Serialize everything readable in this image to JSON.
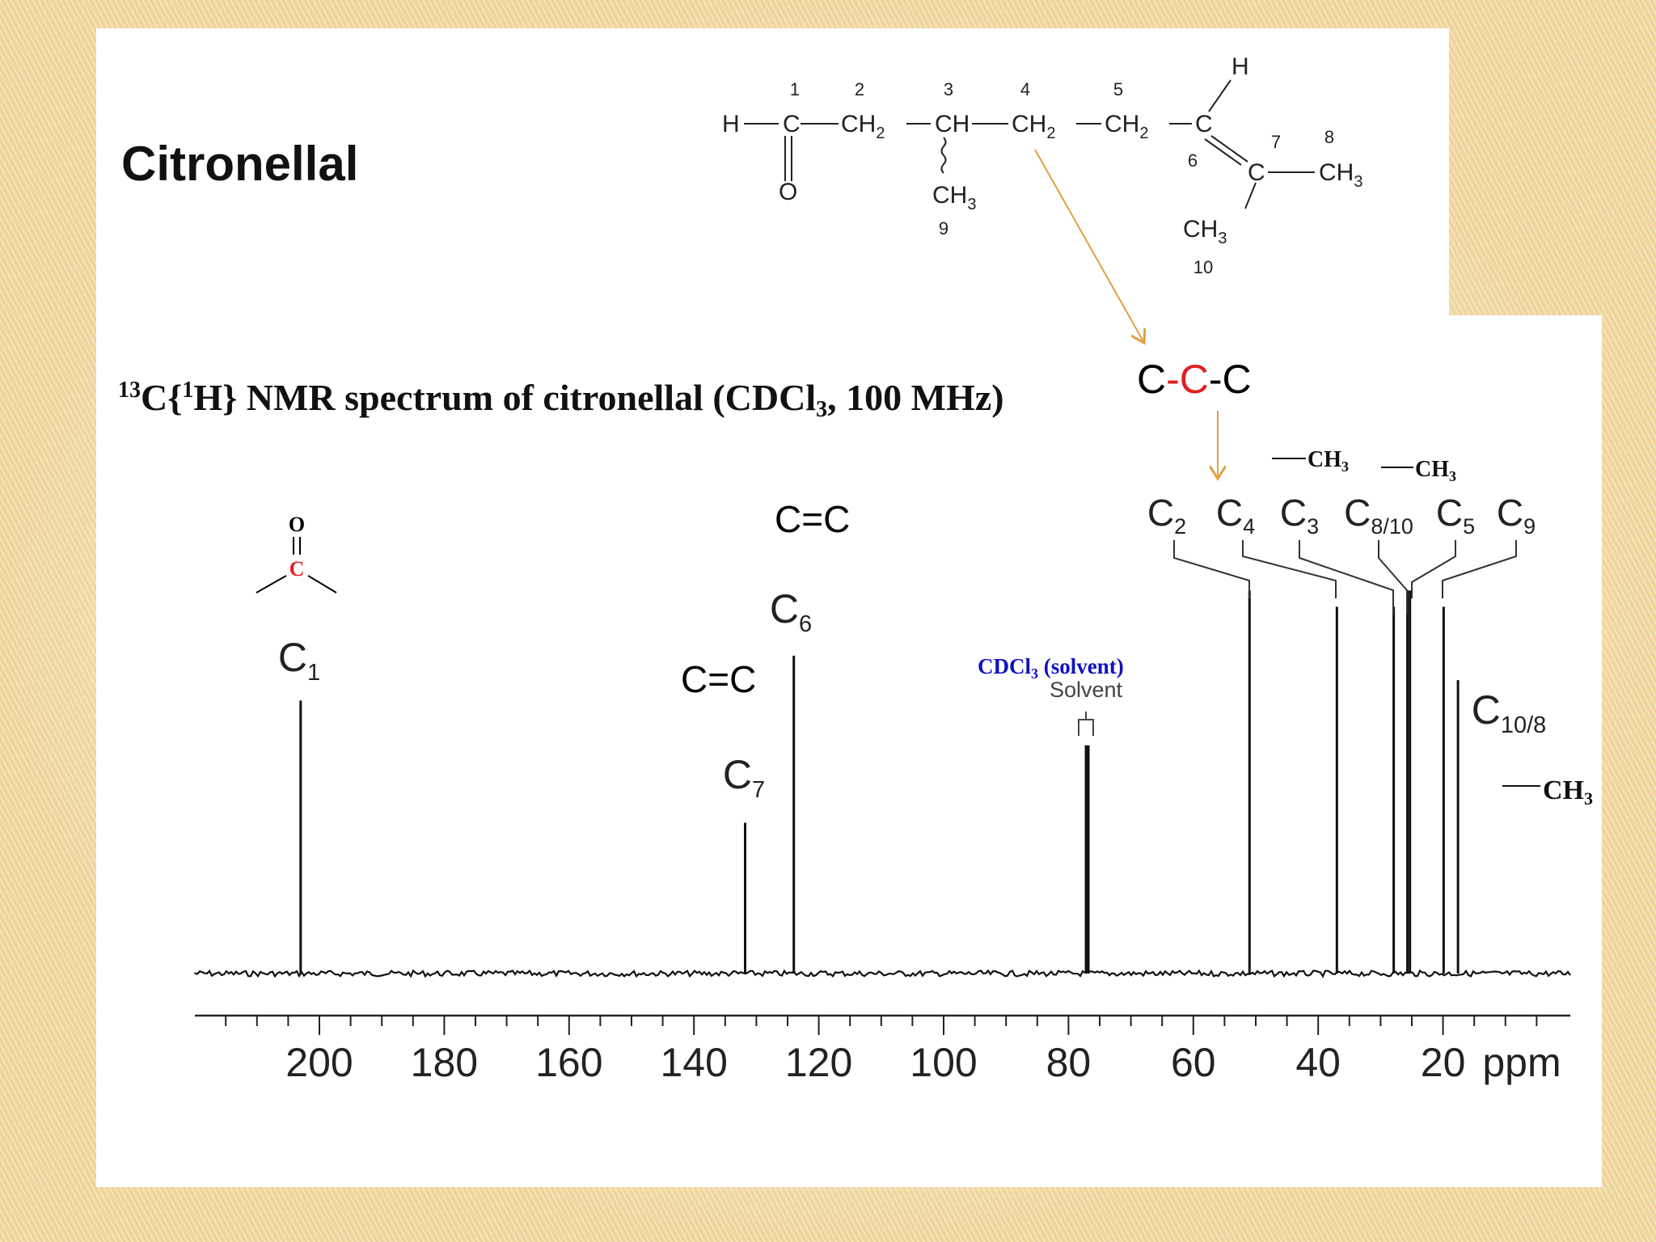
{
  "slide": {
    "title": "Citronellal",
    "spectrum_title": {
      "pre": "13",
      "c": "C{",
      "sup": "1",
      "h": "H} NMR spectrum of citronellal (CDCl",
      "sub": "3",
      "post": ", 100 MHz)"
    },
    "colors": {
      "background": "#f3dca8",
      "arrow": "#e0a040",
      "highlight": "#e02020",
      "solvent_label": "#1010c0"
    }
  },
  "structure": {
    "H": "H",
    "C": "C",
    "O": "O",
    "CH2_main": "CH",
    "CH2_sub": "2",
    "CH_main": "CH",
    "CH3_main": "CH",
    "CH3_sub": "3",
    "numbers": [
      "1",
      "2",
      "3",
      "4",
      "5",
      "6",
      "7",
      "8",
      "9",
      "10"
    ]
  },
  "annotations": {
    "ccc": {
      "a": "C",
      "dash1": "-",
      "b": "C",
      "dash2": "-",
      "c": "C"
    },
    "cc_double_top": "C=C",
    "cc_double_left": "C=C",
    "carbonyl_O": "O",
    "carbonyl_C": "C",
    "solvent_label": "CDCl",
    "solvent_sub": "3",
    "solvent_paren": " (solvent)",
    "solvent_small": "Solvent",
    "methyl_1": "CH",
    "methyl_2": "CH",
    "methyl_3": "CH",
    "methyl_sub": "3",
    "methyl_sub_2": "3",
    "methyl_sub_3": "3"
  },
  "chart_data": {
    "type": "line",
    "title": "",
    "xlabel": "ppm",
    "ylabel": "",
    "x_reversed": true,
    "xlim": [
      220,
      0
    ],
    "xticks": [
      200,
      180,
      160,
      140,
      120,
      100,
      80,
      60,
      40,
      20
    ],
    "tick_labels": [
      "200",
      "180",
      "160",
      "140",
      "120",
      "100",
      "80",
      "60",
      "40",
      "20"
    ],
    "unit_label": "ppm",
    "peaks": [
      {
        "label": "C",
        "sub": "1",
        "ppm": 203.0,
        "height": 0.67
      },
      {
        "label": "C",
        "sub": "7",
        "ppm": 131.8,
        "height": 0.37
      },
      {
        "label": "C",
        "sub": "6",
        "ppm": 124.0,
        "height": 0.78
      },
      {
        "label": "CDCl3",
        "sub": "",
        "ppm": 77.0,
        "height": 0.56
      },
      {
        "label": "C",
        "sub": "2",
        "ppm": 51.0,
        "height": 0.94
      },
      {
        "label": "C",
        "sub": "4",
        "ppm": 37.0,
        "height": 0.9
      },
      {
        "label": "C",
        "sub": "3",
        "ppm": 27.9,
        "height": 0.9
      },
      {
        "label": "C",
        "sub": "8/10",
        "ppm": 25.7,
        "height": 0.94
      },
      {
        "label": "C",
        "sub": "5",
        "ppm": 25.3,
        "height": 0.94
      },
      {
        "label": "C",
        "sub": "9",
        "ppm": 19.9,
        "height": 0.9
      },
      {
        "label": "C",
        "sub": "10/8",
        "ppm": 17.6,
        "height": 0.72
      }
    ]
  }
}
